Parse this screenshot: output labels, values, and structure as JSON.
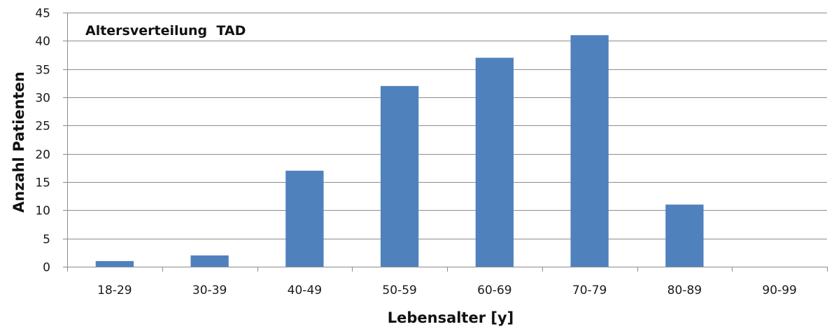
{
  "chart_data": {
    "type": "bar",
    "title": "Altersverteilung  TAD",
    "xlabel": "Lebensalter [y]",
    "ylabel": "Anzahl Patienten",
    "categories": [
      "18-29",
      "30-39",
      "40-49",
      "50-59",
      "60-69",
      "70-79",
      "80-89",
      "90-99"
    ],
    "values": [
      1,
      2,
      17,
      32,
      37,
      41,
      11,
      0
    ],
    "ylim": [
      0,
      45
    ],
    "yticks": [
      0,
      5,
      10,
      15,
      20,
      25,
      30,
      35,
      40,
      45
    ],
    "grid": true,
    "legend": "none",
    "colors": {
      "bar": "#4f81bd",
      "grid": "#8c8c8c",
      "axis": "#8c8c8c"
    }
  }
}
